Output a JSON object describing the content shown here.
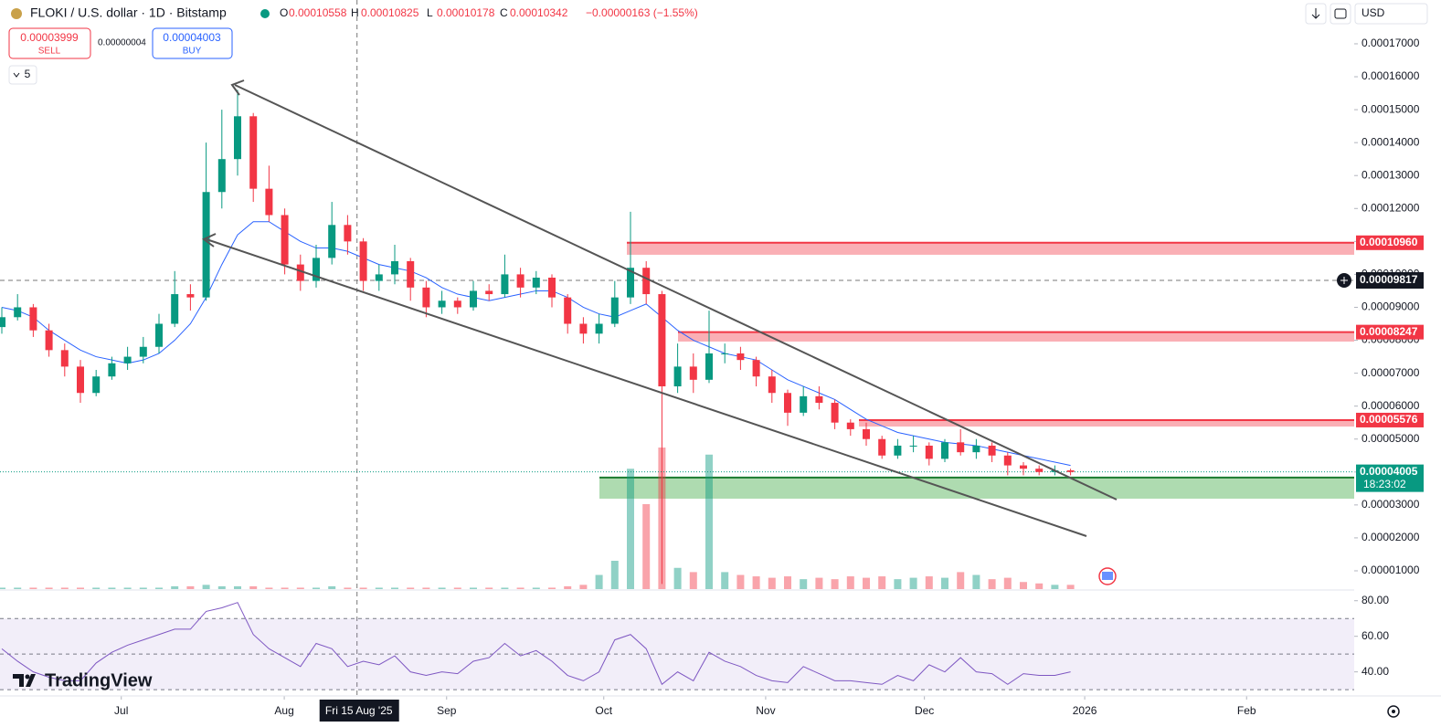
{
  "header": {
    "title": "FLOKI / U.S. dollar · 1D · Bitstamp",
    "ohlc": [
      "O",
      "0.00010558",
      "H",
      "0.00010825",
      "L",
      "0.00010178",
      "C",
      "0.00010342"
    ],
    "change": "−0.00000163 (−1.55%)",
    "currency": "USD",
    "interval_box": "5"
  },
  "trade": {
    "sell_price": "0.00003999",
    "sell_label": "SELL",
    "spread": "0.00000004",
    "buy_price": "0.00004003",
    "buy_label": "BUY"
  },
  "watermark": "TradingView",
  "chart_data": {
    "type": "candlestick",
    "ylim": [
      4.45e-06,
      0.0001833
    ],
    "yticks": [
      {
        "value": 0.00017,
        "label": "0.00017000"
      },
      {
        "value": 0.00016,
        "label": "0.00016000"
      },
      {
        "value": 0.00015,
        "label": "0.00015000"
      },
      {
        "value": 0.00014,
        "label": "0.00014000"
      },
      {
        "value": 0.00013,
        "label": "0.00013000"
      },
      {
        "value": 0.00012,
        "label": "0.00012000"
      },
      {
        "value": 0.00011,
        "label": "0.00011000"
      },
      {
        "value": 0.0001,
        "label": "0.00010000"
      },
      {
        "value": 9e-05,
        "label": "0.00009000"
      },
      {
        "value": 8e-05,
        "label": "0.00008000"
      },
      {
        "value": 7e-05,
        "label": "0.00007000"
      },
      {
        "value": 6e-05,
        "label": "0.00006000"
      },
      {
        "value": 5e-05,
        "label": "0.00005000"
      },
      {
        "value": 4e-05,
        "label": "0.00004000"
      },
      {
        "value": 3e-05,
        "label": "0.00003000"
      },
      {
        "value": 2e-05,
        "label": "0.00002000"
      },
      {
        "value": 1e-05,
        "label": "0.00001000"
      }
    ],
    "xticks": [
      {
        "value": 7.6,
        "label": "Jul"
      },
      {
        "value": 17.97,
        "label": "Aug"
      },
      {
        "value": 28.3,
        "label": "Sep"
      },
      {
        "value": 38.3,
        "label": "Oct"
      },
      {
        "value": 48.6,
        "label": "Nov"
      },
      {
        "value": 58.7,
        "label": "Dec"
      },
      {
        "value": 68.9,
        "label": "2026"
      },
      {
        "value": 79.2,
        "label": "Feb"
      }
    ],
    "colors": {
      "up": "#089981",
      "down": "#f23645",
      "ma": "#2962ff",
      "rsi": "#7e57c2"
    },
    "candles": [
      [
        8.4e-05,
        9e-05,
        8.2e-05,
        8.7e-05
      ],
      [
        8.7e-05,
        9.4e-05,
        8.6e-05,
        9e-05
      ],
      [
        9e-05,
        9.1e-05,
        8.1e-05,
        8.3e-05
      ],
      [
        8.3e-05,
        8.5e-05,
        7.5e-05,
        7.7e-05
      ],
      [
        7.7e-05,
        7.9e-05,
        6.9e-05,
        7.2e-05
      ],
      [
        7.2e-05,
        7.4e-05,
        6.1e-05,
        6.4e-05
      ],
      [
        6.4e-05,
        7.1e-05,
        6.3e-05,
        6.9e-05
      ],
      [
        6.9e-05,
        7.5e-05,
        6.8e-05,
        7.3e-05
      ],
      [
        7.3e-05,
        7.8e-05,
        7.1e-05,
        7.5e-05
      ],
      [
        7.5e-05,
        8.1e-05,
        7.3e-05,
        7.8e-05
      ],
      [
        7.8e-05,
        8.8e-05,
        7.6e-05,
        8.5e-05
      ],
      [
        8.5e-05,
        0.000101,
        8.4e-05,
        9.4e-05
      ],
      [
        9.4e-05,
        9.7e-05,
        8.9e-05,
        9.3e-05
      ],
      [
        9.3e-05,
        0.00014,
        9.2e-05,
        0.000125
      ],
      [
        0.000125,
        0.00015,
        0.00012,
        0.000135
      ],
      [
        0.000135,
        0.000156,
        0.00013,
        0.000148
      ],
      [
        0.000148,
        0.000149,
        0.000122,
        0.000126
      ],
      [
        0.000126,
        0.000133,
        0.000116,
        0.000118
      ],
      [
        0.000118,
        0.00012,
        0.0001,
        0.000103
      ],
      [
        0.000103,
        0.000106,
        9.5e-05,
        9.8e-05
      ],
      [
        9.8e-05,
        0.000109,
        9.6e-05,
        0.000105
      ],
      [
        0.000105,
        0.000122,
        0.000103,
        0.000115
      ],
      [
        0.000115,
        0.000118,
        0.000106,
        0.00011
      ],
      [
        0.00011,
        0.000111,
        9.5e-05,
        9.8e-05
      ],
      [
        9.8e-05,
        0.000103,
        9.5e-05,
        0.0001
      ],
      [
        0.0001,
        0.000109,
        9.7e-05,
        0.000104
      ],
      [
        0.000104,
        0.000105,
        9.2e-05,
        9.6e-05
      ],
      [
        9.6e-05,
        9.8e-05,
        8.7e-05,
        9e-05
      ],
      [
        9e-05,
        9.5e-05,
        8.8e-05,
        9.2e-05
      ],
      [
        9.2e-05,
        9.3e-05,
        8.8e-05,
        9e-05
      ],
      [
        9e-05,
        9.8e-05,
        8.9e-05,
        9.5e-05
      ],
      [
        9.5e-05,
        9.7e-05,
        9.2e-05,
        9.4e-05
      ],
      [
        9.4e-05,
        0.000106,
        9.3e-05,
        0.0001
      ],
      [
        0.0001,
        0.000102,
        9.3e-05,
        9.6e-05
      ],
      [
        9.6e-05,
        0.000101,
        9.4e-05,
        9.9e-05
      ],
      [
        9.9e-05,
        0.0001,
        9e-05,
        9.3e-05
      ],
      [
        9.3e-05,
        9.4e-05,
        8.2e-05,
        8.5e-05
      ],
      [
        8.5e-05,
        8.7e-05,
        7.9e-05,
        8.2e-05
      ],
      [
        8.2e-05,
        8.8e-05,
        7.9e-05,
        8.5e-05
      ],
      [
        8.5e-05,
        9.8e-05,
        8.4e-05,
        9.3e-05
      ],
      [
        9.3e-05,
        0.000119,
        9.1e-05,
        0.000102
      ],
      [
        0.000102,
        0.000104,
        9.1e-05,
        9.4e-05
      ],
      [
        9.4e-05,
        9.5e-05,
        6e-06,
        6.6e-05
      ],
      [
        6.6e-05,
        7.9e-05,
        6.4e-05,
        7.2e-05
      ],
      [
        7.2e-05,
        7.6e-05,
        6.4e-05,
        6.8e-05
      ],
      [
        6.8e-05,
        8.9e-05,
        6.7e-05,
        7.6e-05
      ],
      [
        7.6e-05,
        7.9e-05,
        7.3e-05,
        7.6e-05
      ],
      [
        7.6e-05,
        7.8e-05,
        7.1e-05,
        7.4e-05
      ],
      [
        7.4e-05,
        7.5e-05,
        6.6e-05,
        6.9e-05
      ],
      [
        6.9e-05,
        7.1e-05,
        6.1e-05,
        6.4e-05
      ],
      [
        6.4e-05,
        6.5e-05,
        5.4e-05,
        5.8e-05
      ],
      [
        5.8e-05,
        6.6e-05,
        5.7e-05,
        6.3e-05
      ],
      [
        6.3e-05,
        6.6e-05,
        5.9e-05,
        6.1e-05
      ],
      [
        6.1e-05,
        6.2e-05,
        5.3e-05,
        5.5e-05
      ],
      [
        5.5e-05,
        5.6e-05,
        5.1e-05,
        5.3e-05
      ],
      [
        5.3e-05,
        5.5e-05,
        4.8e-05,
        5e-05
      ],
      [
        5e-05,
        5.1e-05,
        4.4e-05,
        4.5e-05
      ],
      [
        4.5e-05,
        5e-05,
        4.4e-05,
        4.8e-05
      ],
      [
        4.8e-05,
        5.1e-05,
        4.6e-05,
        4.8e-05
      ],
      [
        4.8e-05,
        4.9e-05,
        4.2e-05,
        4.4e-05
      ],
      [
        4.4e-05,
        5e-05,
        4.3e-05,
        4.9e-05
      ],
      [
        4.9e-05,
        5.3e-05,
        4.5e-05,
        4.6e-05
      ],
      [
        4.6e-05,
        5e-05,
        4.4e-05,
        4.8e-05
      ],
      [
        4.8e-05,
        4.9e-05,
        4.3e-05,
        4.5e-05
      ],
      [
        4.5e-05,
        4.6e-05,
        3.9e-05,
        4.2e-05
      ],
      [
        4.2e-05,
        4.3e-05,
        3.9e-05,
        4.1e-05
      ],
      [
        4.1e-05,
        4.2e-05,
        3.9e-05,
        4e-05
      ],
      [
        4e-05,
        4.2e-05,
        3.9e-05,
        4.05e-05
      ],
      [
        4.05e-05,
        4.1e-05,
        3.9e-05,
        4e-05
      ]
    ],
    "ma": [
      9e-05,
      8.9e-05,
      8.7e-05,
      8.3e-05,
      8e-05,
      7.7e-05,
      7.5e-05,
      7.4e-05,
      7.3e-05,
      7.4e-05,
      7.6e-05,
      8e-05,
      8.5e-05,
      9.3e-05,
      0.000103,
      0.000112,
      0.000116,
      0.000116,
      0.000113,
      0.00011,
      0.000108,
      0.000108,
      0.000107,
      0.000105,
      0.000103,
      0.000102,
      0.000101,
      9.9e-05,
      9.6e-05,
      9.4e-05,
      9.3e-05,
      9.2e-05,
      9.3e-05,
      9.4e-05,
      9.5e-05,
      9.5e-05,
      9.3e-05,
      9e-05,
      8.8e-05,
      8.7e-05,
      8.9e-05,
      9.1e-05,
      8.7e-05,
      8.3e-05,
      8e-05,
      7.8e-05,
      7.6e-05,
      7.5e-05,
      7.4e-05,
      7.1e-05,
      6.8e-05,
      6.6e-05,
      6.4e-05,
      6.2e-05,
      5.9e-05,
      5.6e-05,
      5.4e-05,
      5.2e-05,
      5.1e-05,
      5e-05,
      4.9e-05,
      4.85e-05,
      4.8e-05,
      4.7e-05,
      4.6e-05,
      4.5e-05,
      4.4e-05,
      4.3e-05,
      4.2e-05
    ],
    "volume": [
      1,
      1,
      1,
      1,
      1,
      1,
      1,
      1,
      1,
      1,
      1,
      2,
      2,
      3,
      2,
      2,
      2,
      1,
      1,
      1,
      1,
      2,
      1,
      1,
      1,
      1,
      1,
      1,
      1,
      1,
      1,
      1,
      1,
      1,
      1,
      1,
      2,
      3,
      10,
      20,
      85,
      60,
      100,
      15,
      12,
      95,
      12,
      10,
      9,
      8,
      9,
      7,
      8,
      7,
      9,
      8,
      9,
      7,
      8,
      9,
      8,
      12,
      10,
      7,
      8,
      5,
      4,
      3,
      3
    ],
    "zones": [
      {
        "value": 0.0001096,
        "label": "0.00010960",
        "low": 0.00010595
      },
      {
        "value": 8.247e-05,
        "label": "0.00008247",
        "low": 7.96e-05
      },
      {
        "value": 5.576e-05,
        "label": "0.00005576",
        "low": 5.38e-05
      },
      {
        "value": 3.83e-05,
        "low": 3.19e-05
      }
    ],
    "last_price": {
      "value": 4.005e-05,
      "label": "0.00004005",
      "countdown": "18:23:02"
    },
    "crosshair": {
      "x": 22.6,
      "x_label": "Fri 15 Aug '25",
      "y": 9.817e-05,
      "y_label": "0.00009817"
    },
    "rsi": {
      "values": [
        53,
        46,
        40,
        37,
        35,
        35,
        45,
        51,
        55,
        58,
        61,
        64,
        64,
        74,
        76,
        79,
        61,
        53,
        48,
        43,
        56,
        53,
        43,
        46,
        44,
        49,
        40,
        38,
        40,
        39,
        46,
        48,
        56,
        49,
        52,
        46,
        38,
        35,
        40,
        58,
        61,
        53,
        33,
        40,
        35,
        51,
        46,
        43,
        38,
        35,
        34,
        43,
        39,
        35,
        35,
        34,
        33,
        38,
        35,
        44,
        40,
        48,
        40,
        39,
        33,
        39,
        38,
        38,
        40
      ],
      "ylim": [
        27.5,
        85
      ],
      "yticks": [
        {
          "value": 80,
          "label": "80.00"
        },
        {
          "value": 60,
          "label": "60.00"
        },
        {
          "value": 40,
          "label": "40.00"
        }
      ],
      "levels": [
        70,
        50,
        30
      ]
    }
  }
}
